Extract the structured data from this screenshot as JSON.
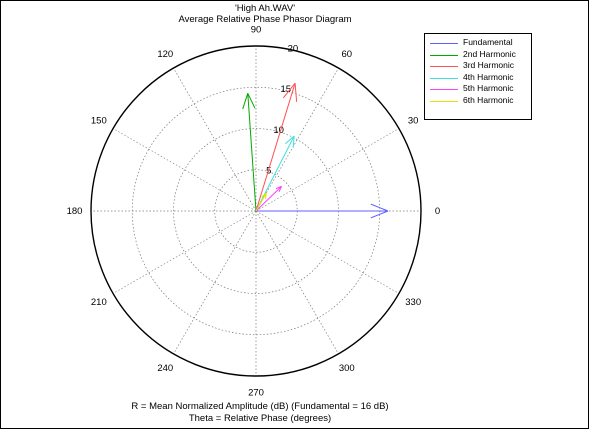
{
  "chart_data": {
    "type": "polar",
    "title": "'High Ah.WAV'",
    "subtitle": "Average Relative Phase Phasor Diagram",
    "xlabel": "R = Mean Normalized Amplitude (dB) (Fundamental = 16 dB)",
    "ylabel": "Theta = Relative Phase (degrees)",
    "rmax": 20,
    "radial_ticks": [
      "5",
      "10",
      "15",
      "20"
    ],
    "angle_ticks": [
      "0",
      "30",
      "60",
      "90",
      "120",
      "150",
      "180",
      "210",
      "240",
      "270",
      "300",
      "330"
    ],
    "legend_position": "top-right",
    "series": [
      {
        "name": "Fundamental",
        "color": "#6060ff",
        "r": 16,
        "theta": 0
      },
      {
        "name": "2nd Harmonic",
        "color": "#00aa00",
        "r": 14.3,
        "theta": 94
      },
      {
        "name": "3rd Harmonic",
        "color": "#ff5050",
        "r": 16.2,
        "theta": 73
      },
      {
        "name": "4th Harmonic",
        "color": "#40e0e0",
        "r": 10.2,
        "theta": 63
      },
      {
        "name": "5th Harmonic",
        "color": "#ff40ff",
        "r": 4.3,
        "theta": 44
      },
      {
        "name": "6th Harmonic",
        "color": "#e8e000",
        "r": 2.5,
        "theta": 60
      }
    ]
  }
}
